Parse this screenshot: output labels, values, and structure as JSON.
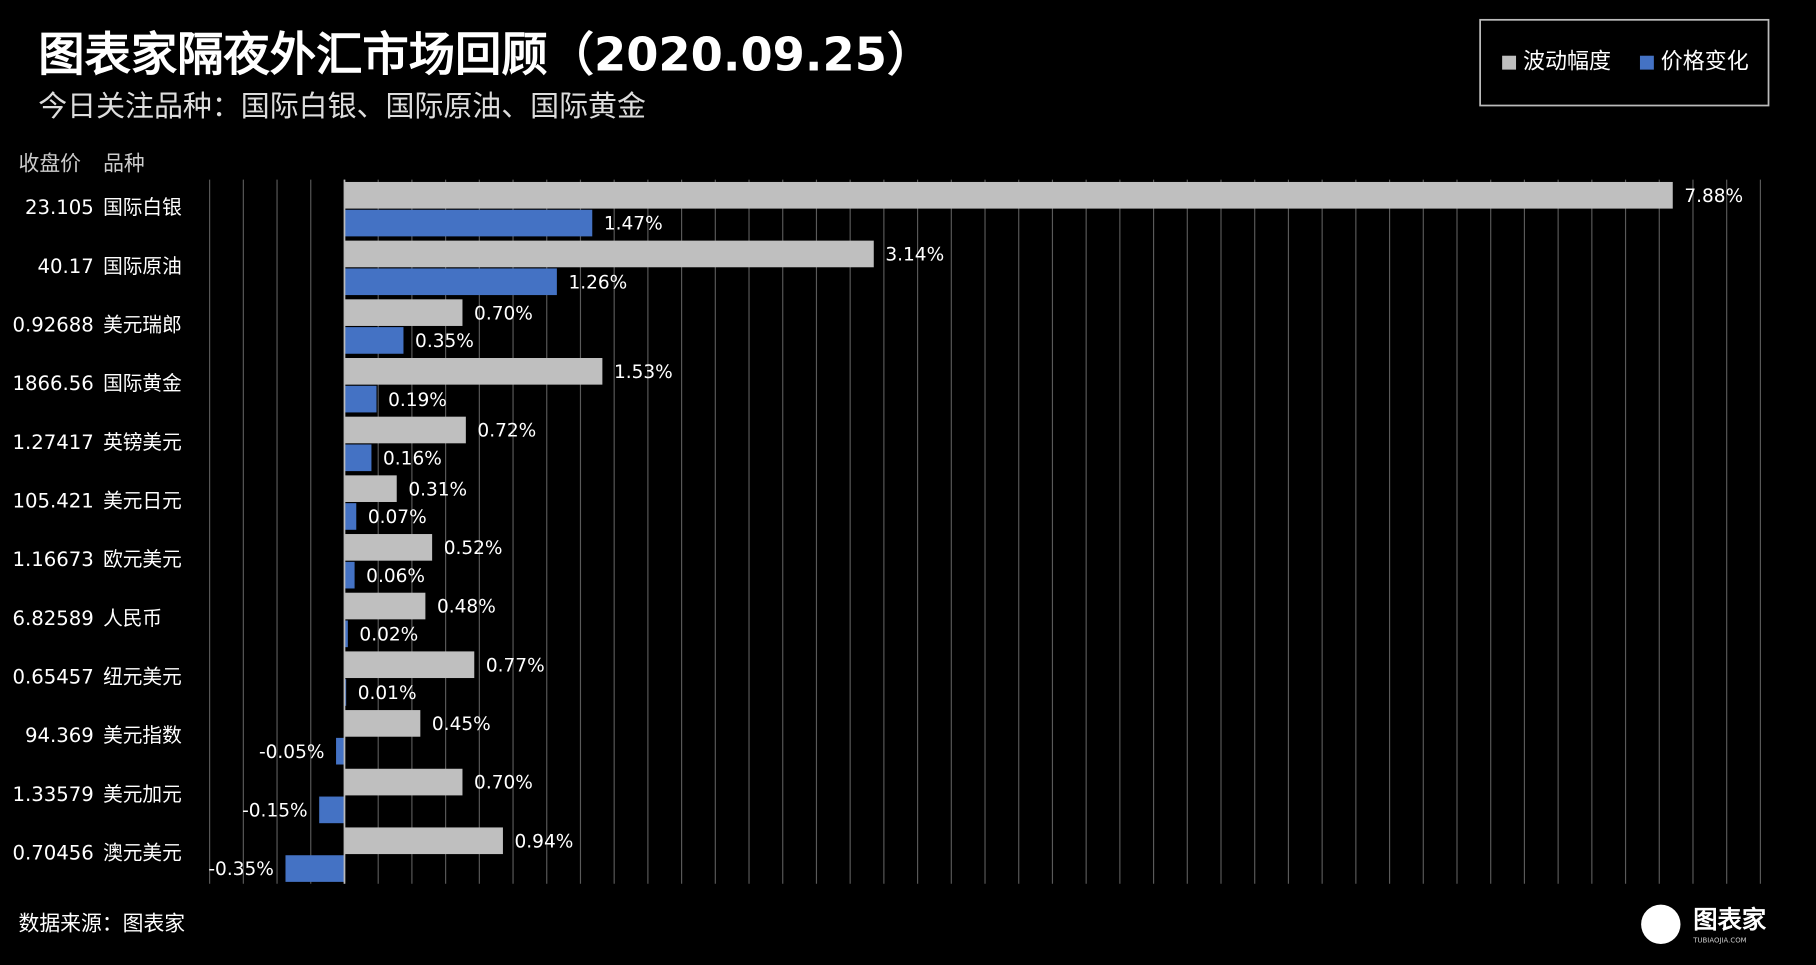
{
  "chart_data": {
    "type": "bar",
    "orientation": "horizontal",
    "title": "图表家隔夜外汇市场回顾（2020.09.25）",
    "subtitle": "今日关注品种：国际白银、国际原油、国际黄金",
    "column_headers": [
      "收盘价",
      "品种"
    ],
    "close_prices": [
      "23.105",
      "40.17",
      "0.92688",
      "1866.56",
      "1.27417",
      "105.421",
      "1.16673",
      "6.82589",
      "0.65457",
      "94.369",
      "1.33579",
      "0.70456"
    ],
    "categories": [
      "国际白银",
      "国际原油",
      "美元瑞郎",
      "国际黄金",
      "英镑美元",
      "美元日元",
      "欧元美元",
      "人民币",
      "纽元美元",
      "美元指数",
      "美元加元",
      "澳元美元"
    ],
    "series": [
      {
        "name": "波动幅度",
        "color": "#bfbfbf",
        "values": [
          7.88,
          3.14,
          0.7,
          1.53,
          0.72,
          0.31,
          0.52,
          0.48,
          0.77,
          0.45,
          0.7,
          0.94
        ],
        "value_labels": [
          "7.88%",
          "3.14%",
          "0.70%",
          "1.53%",
          "0.72%",
          "0.31%",
          "0.52%",
          "0.48%",
          "0.77%",
          "0.45%",
          "0.70%",
          "0.94%"
        ]
      },
      {
        "name": "价格变化",
        "color": "#4472c4",
        "values": [
          1.47,
          1.26,
          0.35,
          0.19,
          0.16,
          0.07,
          0.06,
          0.02,
          0.01,
          -0.05,
          -0.15,
          -0.35
        ],
        "value_labels": [
          "1.47%",
          "1.26%",
          "0.35%",
          "0.19%",
          "0.16%",
          "0.07%",
          "0.06%",
          "0.02%",
          "0.01%",
          "-0.05%",
          "-0.15%",
          "-0.35%"
        ]
      }
    ],
    "xlim": [
      -0.8,
      8.4
    ],
    "xticks": [
      -0.8,
      -0.6,
      -0.4,
      -0.2,
      0,
      0.2,
      0.4,
      0.6,
      0.8,
      1,
      1.2,
      1.4,
      1.6,
      1.8,
      2,
      2.2,
      2.4,
      2.6,
      2.8,
      3,
      3.2,
      3.4,
      3.6,
      3.8,
      4,
      4.2,
      4.4,
      4.6,
      4.8,
      5,
      5.2,
      5.4,
      5.6,
      5.8,
      6,
      6.2,
      6.4,
      6.6,
      6.8,
      7,
      7.2,
      7.4,
      7.6,
      7.8,
      8,
      8.2,
      8.4
    ],
    "grid": true,
    "legend": "top-right",
    "source": "数据来源：图表家",
    "logo": "图表家",
    "logo_sub": "TUBIAOJIA.COM"
  }
}
